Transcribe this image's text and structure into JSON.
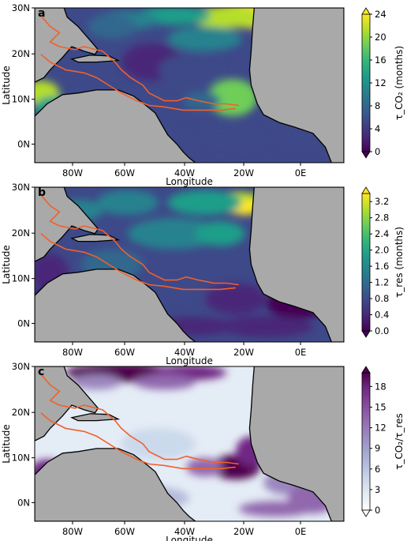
{
  "colors": {
    "land": "#a9a9a9",
    "coast": "#000000",
    "contour": "#f0612a",
    "viridis": [
      "#440154",
      "#482878",
      "#3e4989",
      "#31688e",
      "#26828e",
      "#1f9e89",
      "#35b779",
      "#6ece58",
      "#b5de2b",
      "#fde725"
    ],
    "purples": [
      "#ffffff",
      "#e4ecf6",
      "#cbd9ec",
      "#b4bcdc",
      "#a3a1cd",
      "#9b86be",
      "#9168ad",
      "#83489a",
      "#6f2883",
      "#4d004b"
    ]
  },
  "chart_data": [
    {
      "panel": "a",
      "type": "heatmap",
      "xlabel": "Longitude",
      "ylabel": "Latitude",
      "xticks": [
        "80W",
        "60W",
        "40W",
        "20W",
        "0E"
      ],
      "yticks": [
        "30N",
        "20N",
        "10N",
        "0N"
      ],
      "xlim": [
        -90,
        14
      ],
      "ylim": [
        -5,
        30
      ],
      "colorbar": {
        "label": "τ_CO₂ (months)",
        "ticks": [
          "0",
          "4",
          "8",
          "12",
          "16",
          "20",
          "24"
        ],
        "range": [
          0,
          24
        ],
        "cmap": "viridis",
        "extend": "both"
      }
    },
    {
      "panel": "b",
      "type": "heatmap",
      "xlabel": "Longitude",
      "ylabel": "Latitude",
      "xticks": [
        "80W",
        "60W",
        "40W",
        "20W",
        "0E"
      ],
      "yticks": [
        "30N",
        "20N",
        "10N",
        "0N"
      ],
      "xlim": [
        -90,
        14
      ],
      "ylim": [
        -5,
        30
      ],
      "colorbar": {
        "label": "τ_res (months)",
        "ticks": [
          "0.0",
          "0.4",
          "0.8",
          "1.2",
          "1.6",
          "2.0",
          "2.4",
          "2.8",
          "3.2"
        ],
        "range": [
          0,
          3.4
        ],
        "cmap": "viridis",
        "extend": "both"
      }
    },
    {
      "panel": "c",
      "type": "heatmap",
      "xlabel": "Longitude",
      "ylabel": "Latitude",
      "xticks": [
        "80W",
        "60W",
        "40W",
        "20W",
        "0E"
      ],
      "yticks": [
        "30N",
        "20N",
        "10N",
        "0N"
      ],
      "xlim": [
        -90,
        14
      ],
      "ylim": [
        -5,
        30
      ],
      "colorbar": {
        "label": "τ_CO₂/τ_res",
        "ticks": [
          "0",
          "3",
          "6",
          "9",
          "12",
          "15",
          "18"
        ],
        "range": [
          0,
          20
        ],
        "cmap": "purples",
        "extend": "both"
      }
    }
  ]
}
